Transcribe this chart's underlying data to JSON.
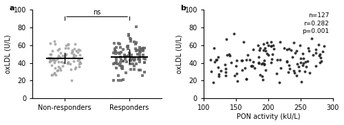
{
  "panel_a": {
    "label": "a",
    "ylabel": "oxLDL (U/L)",
    "ylim": [
      0,
      100
    ],
    "yticks": [
      0,
      20,
      40,
      60,
      80,
      100
    ],
    "groups": [
      "Non-responders",
      "Responders"
    ],
    "ns_text": "ns",
    "non_responders_mean": 46.0,
    "responders_mean": 46.0,
    "non_responders_color": "#a0a0a0",
    "responders_color": "#606060",
    "marker_nr": "o",
    "marker_r": "s",
    "seed_nr": 42,
    "seed_r": 99,
    "n_nr": 80,
    "n_r": 100
  },
  "panel_b": {
    "label": "b",
    "xlabel": "PON activity (kU/L)",
    "ylabel": "oxLDL (U/L)",
    "ylim": [
      0,
      100
    ],
    "yticks": [
      0,
      20,
      40,
      60,
      80,
      100
    ],
    "xlim": [
      100,
      300
    ],
    "xticks": [
      100,
      150,
      200,
      250,
      300
    ],
    "annotation": "n=127\nr=0.282\np=0.001",
    "dot_color": "#222222",
    "marker": "o",
    "seed": 7,
    "n": 127
  },
  "background_color": "#ffffff",
  "font_color": "#333333"
}
